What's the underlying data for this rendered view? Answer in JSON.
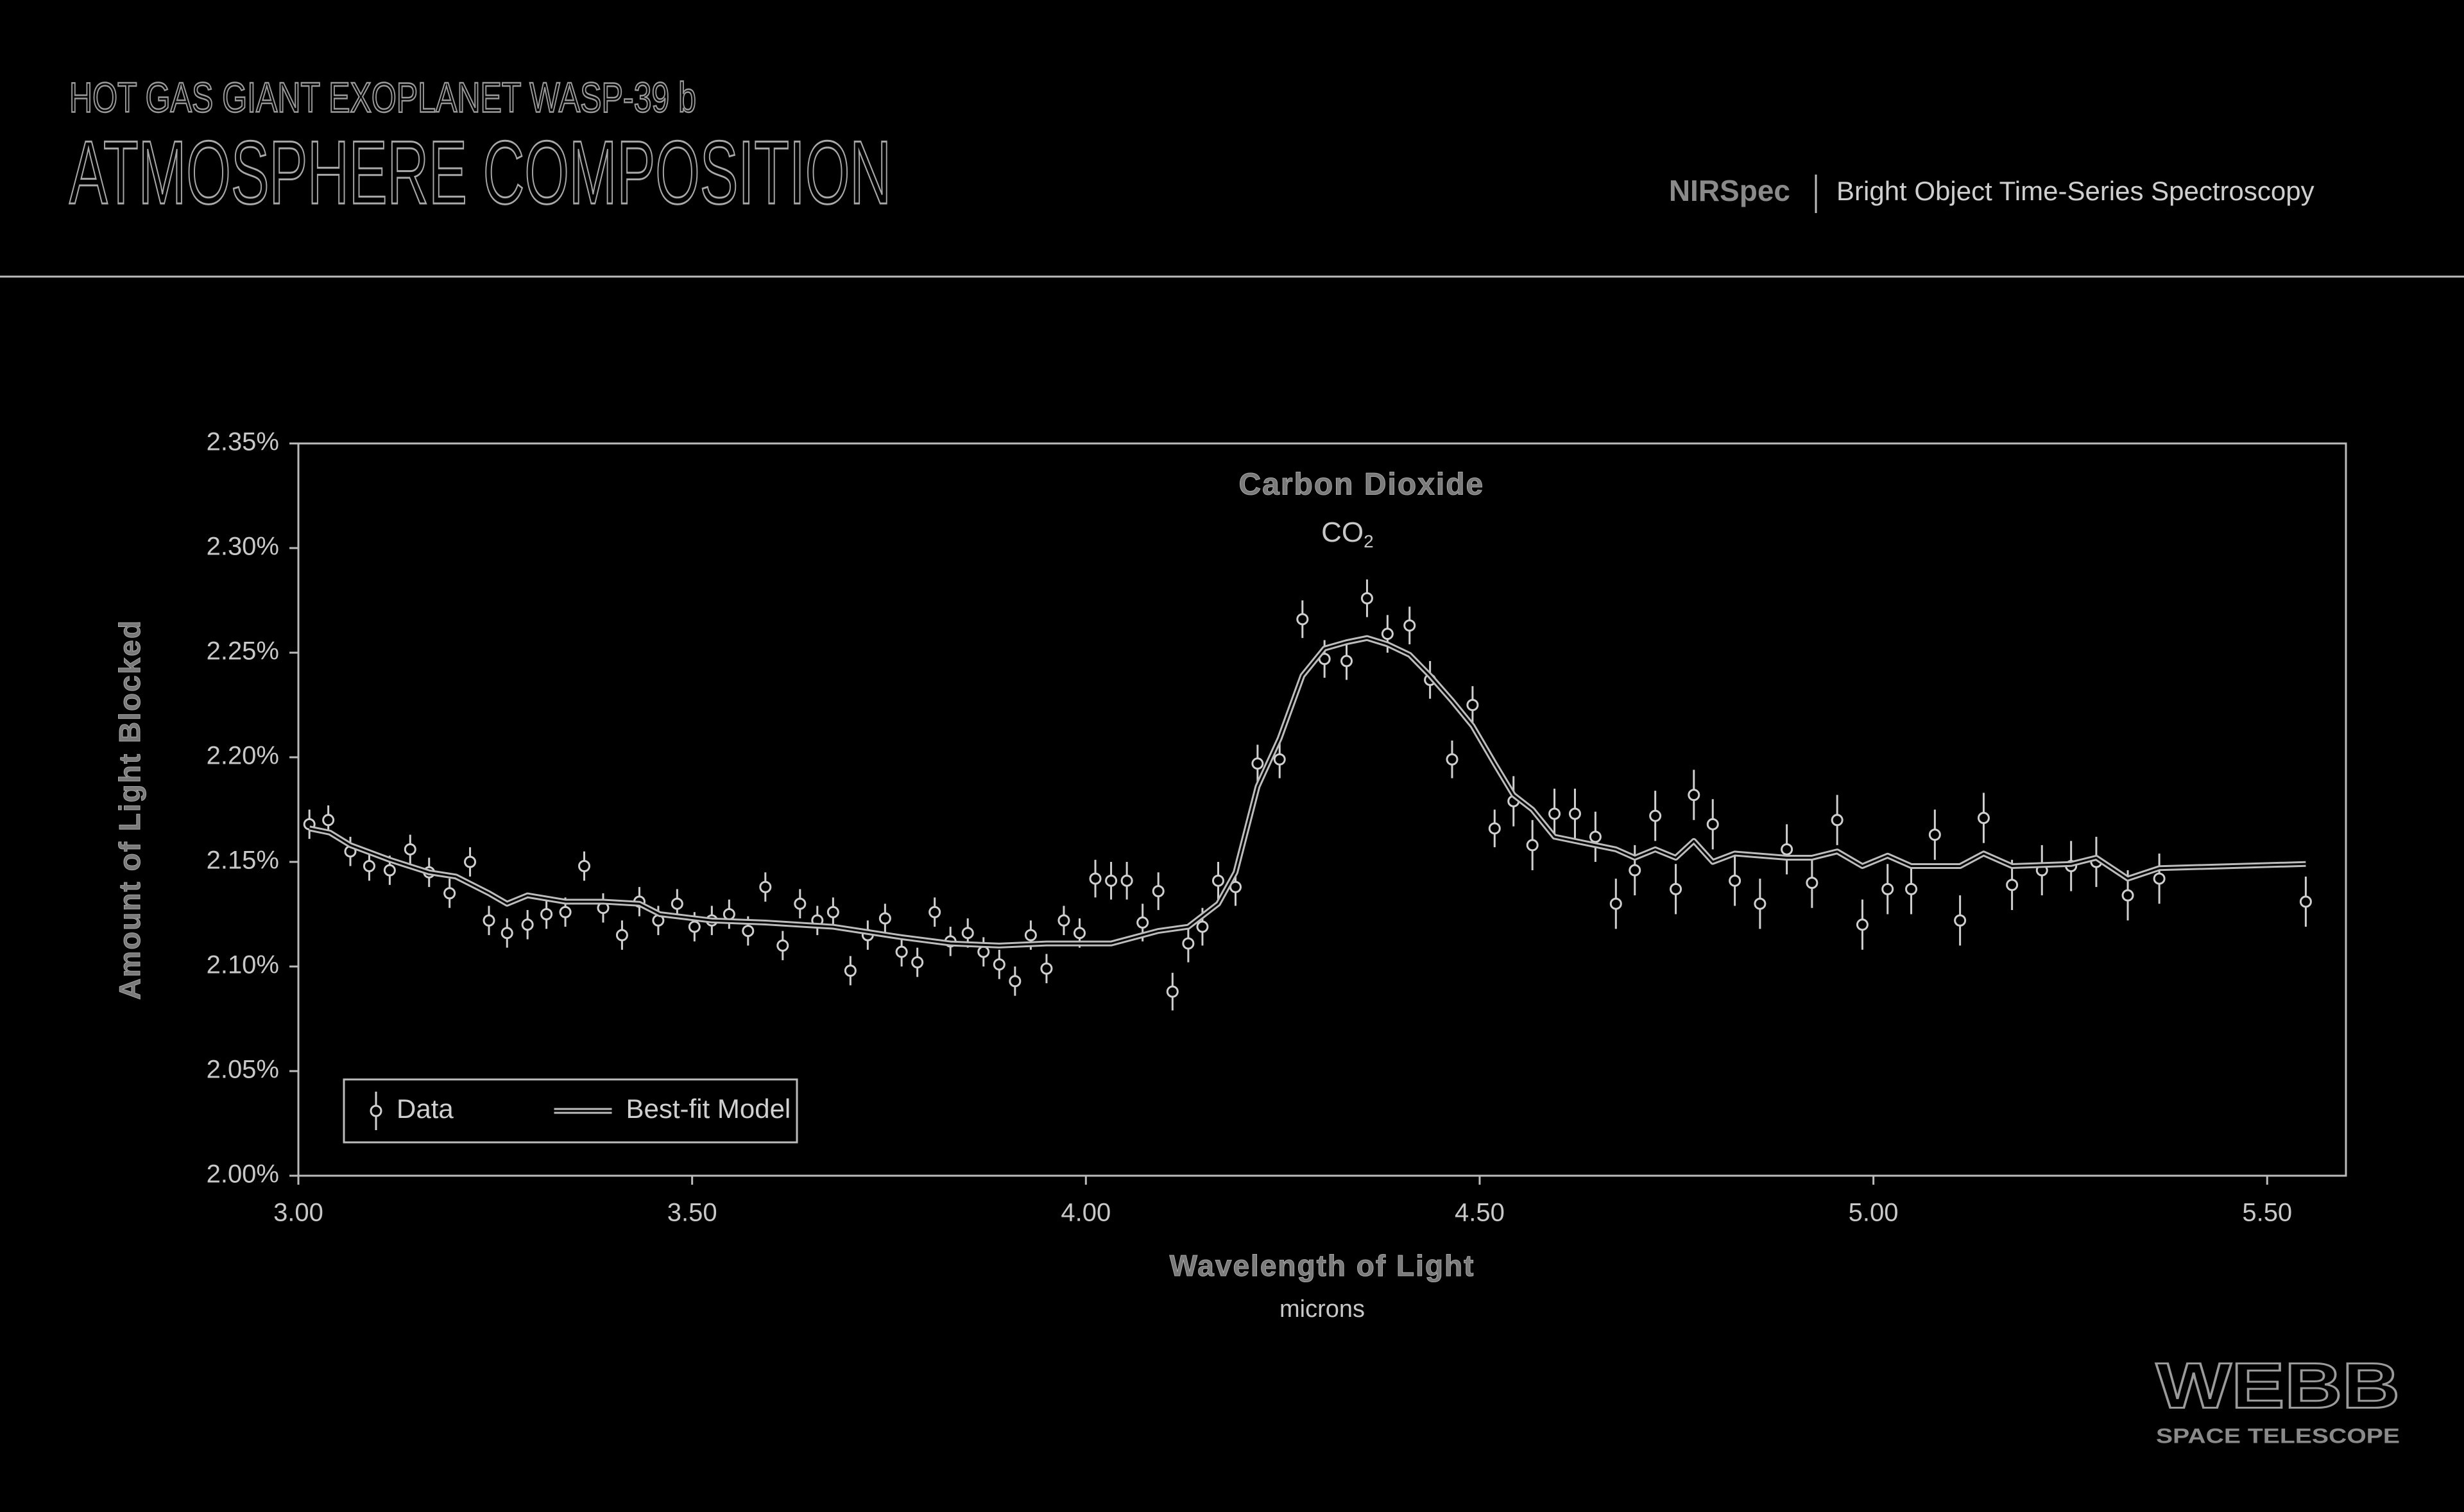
{
  "header": {
    "subtitle": "HOT GAS GIANT EXOPLANET WASP-39 b",
    "title": "ATMOSPHERE COMPOSITION",
    "instrument": "NIRSpec",
    "mode": "Bright Object Time-Series Spectroscopy"
  },
  "logo": {
    "name": "WEBB",
    "tagline": "SPACE TELESCOPE"
  },
  "chart_data": {
    "type": "scatter",
    "x_label": "Wavelength of Light",
    "x_unit": "microns",
    "y_label": "Amount of Light Blocked",
    "annotation": {
      "label": "Carbon Dioxide",
      "formula": "CO",
      "formula_subscript": "2",
      "x": 4.35,
      "y": 2.327
    },
    "xlim": [
      3.0,
      5.6
    ],
    "ylim": [
      2.0,
      2.35
    ],
    "xticks": [
      {
        "value": 3.0,
        "label": "3.00"
      },
      {
        "value": 3.5,
        "label": "3.50"
      },
      {
        "value": 4.0,
        "label": "4.00"
      },
      {
        "value": 4.5,
        "label": "4.50"
      },
      {
        "value": 5.0,
        "label": "5.00"
      },
      {
        "value": 5.5,
        "label": "5.50"
      }
    ],
    "yticks": [
      {
        "value": 2.0,
        "label": "2.00%"
      },
      {
        "value": 2.05,
        "label": "2.05%"
      },
      {
        "value": 2.1,
        "label": "2.10%"
      },
      {
        "value": 2.15,
        "label": "2.15%"
      },
      {
        "value": 2.2,
        "label": "2.20%"
      },
      {
        "value": 2.25,
        "label": "2.25%"
      },
      {
        "value": 2.3,
        "label": "2.30%"
      },
      {
        "value": 2.35,
        "label": "2.35%"
      }
    ],
    "legend": "lower left",
    "series": [
      {
        "name": "Data",
        "type": "scatter",
        "color": "#cfcfcf",
        "x": [
          3.014,
          3.038,
          3.066,
          3.09,
          3.116,
          3.142,
          3.166,
          3.192,
          3.218,
          3.242,
          3.265,
          3.291,
          3.315,
          3.339,
          3.363,
          3.387,
          3.411,
          3.433,
          3.457,
          3.481,
          3.503,
          3.525,
          3.547,
          3.571,
          3.593,
          3.615,
          3.637,
          3.659,
          3.679,
          3.701,
          3.723,
          3.745,
          3.766,
          3.786,
          3.808,
          3.828,
          3.85,
          3.87,
          3.89,
          3.91,
          3.93,
          3.95,
          3.972,
          3.992,
          4.012,
          4.032,
          4.052,
          4.072,
          4.092,
          4.11,
          4.13,
          4.148,
          4.168,
          4.19,
          4.218,
          4.246,
          4.275,
          4.303,
          4.331,
          4.357,
          4.383,
          4.411,
          4.437,
          4.465,
          4.491,
          4.519,
          4.543,
          4.567,
          4.595,
          4.621,
          4.647,
          4.673,
          4.697,
          4.723,
          4.749,
          4.772,
          4.796,
          4.824,
          4.856,
          4.89,
          4.922,
          4.954,
          4.986,
          5.018,
          5.048,
          5.078,
          5.11,
          5.14,
          5.176,
          5.214,
          5.251,
          5.283,
          5.323,
          5.363,
          5.549
        ],
        "values": [
          2.168,
          2.17,
          2.155,
          2.148,
          2.146,
          2.156,
          2.145,
          2.135,
          2.15,
          2.122,
          2.116,
          2.12,
          2.125,
          2.126,
          2.148,
          2.128,
          2.115,
          2.131,
          2.122,
          2.13,
          2.119,
          2.122,
          2.125,
          2.117,
          2.138,
          2.11,
          2.13,
          2.122,
          2.126,
          2.098,
          2.115,
          2.123,
          2.107,
          2.102,
          2.126,
          2.112,
          2.116,
          2.107,
          2.101,
          2.093,
          2.115,
          2.099,
          2.122,
          2.116,
          2.142,
          2.141,
          2.141,
          2.121,
          2.136,
          2.088,
          2.111,
          2.119,
          2.141,
          2.138,
          2.197,
          2.199,
          2.266,
          2.247,
          2.246,
          2.276,
          2.259,
          2.263,
          2.237,
          2.199,
          2.225,
          2.166,
          2.179,
          2.158,
          2.173,
          2.173,
          2.162,
          2.13,
          2.146,
          2.172,
          2.137,
          2.182,
          2.168,
          2.141,
          2.13,
          2.156,
          2.14,
          2.17,
          2.12,
          2.137,
          2.137,
          2.163,
          2.122,
          2.171,
          2.139,
          2.146,
          2.148,
          2.15,
          2.134,
          2.142,
          2.131
        ],
        "errors": [
          0.007,
          0.007,
          0.007,
          0.007,
          0.007,
          0.007,
          0.007,
          0.007,
          0.007,
          0.007,
          0.007,
          0.007,
          0.007,
          0.007,
          0.007,
          0.007,
          0.007,
          0.007,
          0.007,
          0.007,
          0.007,
          0.007,
          0.007,
          0.007,
          0.007,
          0.007,
          0.007,
          0.007,
          0.007,
          0.007,
          0.007,
          0.007,
          0.007,
          0.007,
          0.007,
          0.007,
          0.007,
          0.007,
          0.007,
          0.007,
          0.007,
          0.007,
          0.007,
          0.007,
          0.009,
          0.009,
          0.009,
          0.009,
          0.009,
          0.009,
          0.009,
          0.009,
          0.009,
          0.009,
          0.009,
          0.009,
          0.009,
          0.009,
          0.009,
          0.009,
          0.009,
          0.009,
          0.009,
          0.009,
          0.009,
          0.009,
          0.012,
          0.012,
          0.012,
          0.012,
          0.012,
          0.012,
          0.012,
          0.012,
          0.012,
          0.012,
          0.012,
          0.012,
          0.012,
          0.012,
          0.012,
          0.012,
          0.012,
          0.012,
          0.012,
          0.012,
          0.012,
          0.012,
          0.012,
          0.012,
          0.012,
          0.012,
          0.012,
          0.012,
          0.012
        ]
      },
      {
        "name": "Best-fit Model",
        "type": "line",
        "color": "#bcbcbc",
        "x": [
          3.014,
          3.04,
          3.066,
          3.116,
          3.166,
          3.2,
          3.242,
          3.265,
          3.291,
          3.339,
          3.387,
          3.433,
          3.459,
          3.525,
          3.593,
          3.679,
          3.766,
          3.828,
          3.89,
          3.95,
          4.032,
          4.092,
          4.13,
          4.168,
          4.19,
          4.218,
          4.246,
          4.275,
          4.303,
          4.331,
          4.357,
          4.383,
          4.411,
          4.437,
          4.465,
          4.491,
          4.519,
          4.543,
          4.567,
          4.595,
          4.621,
          4.673,
          4.697,
          4.723,
          4.749,
          4.772,
          4.796,
          4.824,
          4.89,
          4.922,
          4.954,
          4.986,
          5.018,
          5.048,
          5.11,
          5.14,
          5.176,
          5.251,
          5.283,
          5.323,
          5.363,
          5.549
        ],
        "values": [
          2.166,
          2.164,
          2.158,
          2.151,
          2.145,
          2.143,
          2.135,
          2.13,
          2.134,
          2.131,
          2.131,
          2.13,
          2.125,
          2.122,
          2.121,
          2.119,
          2.114,
          2.111,
          2.11,
          2.111,
          2.111,
          2.117,
          2.119,
          2.13,
          2.145,
          2.186,
          2.209,
          2.239,
          2.252,
          2.255,
          2.257,
          2.254,
          2.249,
          2.239,
          2.227,
          2.215,
          2.197,
          2.182,
          2.175,
          2.162,
          2.16,
          2.156,
          2.152,
          2.156,
          2.152,
          2.16,
          2.15,
          2.154,
          2.152,
          2.152,
          2.155,
          2.148,
          2.153,
          2.148,
          2.148,
          2.154,
          2.148,
          2.149,
          2.152,
          2.142,
          2.147,
          2.149
        ]
      }
    ]
  }
}
